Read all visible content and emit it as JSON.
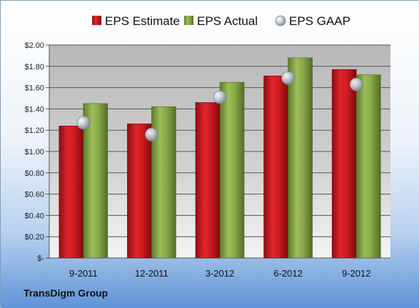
{
  "chart_data": {
    "type": "bar",
    "categories": [
      "9-2011",
      "12-2011",
      "3-2012",
      "6-2012",
      "9-2012"
    ],
    "series": [
      {
        "name": "EPS Estimate",
        "kind": "bar",
        "color": "#c8151c",
        "values": [
          1.24,
          1.26,
          1.46,
          1.71,
          1.77
        ]
      },
      {
        "name": "EPS Actual",
        "kind": "bar",
        "color": "#8aa84a",
        "values": [
          1.45,
          1.42,
          1.65,
          1.88,
          1.72
        ]
      },
      {
        "name": "EPS GAAP",
        "kind": "marker",
        "color": "#aab4c2",
        "values": [
          1.27,
          1.16,
          1.51,
          1.69,
          1.63
        ]
      }
    ],
    "ylim": [
      0,
      2.0
    ],
    "yticks": [
      "$-",
      "$0.20",
      "$0.40",
      "$0.60",
      "$0.80",
      "$1.00",
      "$1.20",
      "$1.40",
      "$1.60",
      "$1.80",
      "$2.00"
    ],
    "legend_position": "top",
    "grid": true
  },
  "footer": {
    "company": "TransDigm Group"
  }
}
